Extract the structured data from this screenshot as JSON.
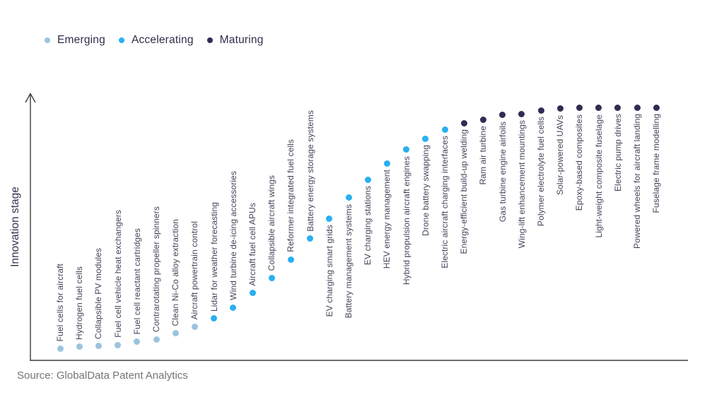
{
  "legend": {
    "items": [
      {
        "label": "Emerging",
        "color": "#9cc3de"
      },
      {
        "label": "Accelerating",
        "color": "#29b0f0"
      },
      {
        "label": "Maturing",
        "color": "#332a54"
      }
    ]
  },
  "y_axis_label": "Innovation stage",
  "source": "Source: GlobalData Patent Analytics",
  "chart_data": {
    "type": "scatter",
    "title": "",
    "xlabel": "",
    "ylabel": "Innovation stage",
    "y_axis_scale": "qualitative innovation stage, 0-1 estimated from dot height",
    "legend_position": "top-left",
    "grid": false,
    "series": [
      {
        "name": "Emerging",
        "color": "#9cc3de",
        "points": [
          {
            "label": "Fuel cells for aircraft",
            "stage_score": 0.047,
            "label_position": "above"
          },
          {
            "label": "Hydrogen fuel cells",
            "stage_score": 0.053,
            "label_position": "above"
          },
          {
            "label": "Collapsible PV modules",
            "stage_score": 0.056,
            "label_position": "above"
          },
          {
            "label": "Fuel cell vehicle heat exchangers",
            "stage_score": 0.061,
            "label_position": "above"
          },
          {
            "label": "Fuel cell reactant cartridges",
            "stage_score": 0.075,
            "label_position": "above"
          },
          {
            "label": "Contrarotating propeller spinners",
            "stage_score": 0.083,
            "label_position": "above"
          },
          {
            "label": "Clean Ni-Co alloy extraction",
            "stage_score": 0.106,
            "label_position": "above"
          },
          {
            "label": "Aircraft powertrain control",
            "stage_score": 0.133,
            "label_position": "above"
          }
        ]
      },
      {
        "name": "Accelerating",
        "color": "#29b0f0",
        "points": [
          {
            "label": "Lidar for weather forecasting",
            "stage_score": 0.164,
            "label_position": "above"
          },
          {
            "label": "Wind turbine de-icing accessories",
            "stage_score": 0.208,
            "label_position": "above"
          },
          {
            "label": "Aircraft fuel cell APUs",
            "stage_score": 0.264,
            "label_position": "above"
          },
          {
            "label": "Collapsible aircraft wings",
            "stage_score": 0.325,
            "label_position": "above"
          },
          {
            "label": "Reformer integrated fuel cells",
            "stage_score": 0.397,
            "label_position": "above"
          },
          {
            "label": "Battery energy storage systems",
            "stage_score": 0.478,
            "label_position": "above"
          },
          {
            "label": "EV charging smart grids",
            "stage_score": 0.558,
            "label_position": "below"
          },
          {
            "label": "Battery management systems",
            "stage_score": 0.639,
            "label_position": "below"
          },
          {
            "label": "EV charging stations",
            "stage_score": 0.711,
            "label_position": "below"
          },
          {
            "label": "HEV energy management",
            "stage_score": 0.775,
            "label_position": "below"
          },
          {
            "label": "Hybrid propulsion aircraft engines",
            "stage_score": 0.828,
            "label_position": "below"
          },
          {
            "label": "Drone battery swapping",
            "stage_score": 0.872,
            "label_position": "below"
          },
          {
            "label": "Electric aircraft charging interfaces",
            "stage_score": 0.908,
            "label_position": "below"
          }
        ]
      },
      {
        "name": "Maturing",
        "color": "#332a54",
        "points": [
          {
            "label": "Energy-efficient build-up welding",
            "stage_score": 0.933,
            "label_position": "below"
          },
          {
            "label": "Ram air turbine",
            "stage_score": 0.947,
            "label_position": "below"
          },
          {
            "label": "Gas turbine engine airfoils",
            "stage_score": 0.964,
            "label_position": "below"
          },
          {
            "label": "Wing-lift enhancement mountings",
            "stage_score": 0.969,
            "label_position": "below"
          },
          {
            "label": "Polymer electrolyte fuel cells",
            "stage_score": 0.983,
            "label_position": "below"
          },
          {
            "label": "Solar-powered UAVs",
            "stage_score": 0.989,
            "label_position": "below"
          },
          {
            "label": "Epoxy-based composites",
            "stage_score": 0.992,
            "label_position": "below"
          },
          {
            "label": "Light-weight composite fuselage",
            "stage_score": 0.992,
            "label_position": "below"
          },
          {
            "label": "Electric pump drives",
            "stage_score": 0.994,
            "label_position": "below"
          },
          {
            "label": "Powered wheels for aircraft landing",
            "stage_score": 0.994,
            "label_position": "below"
          },
          {
            "label": "Fuselage frame modelling",
            "stage_score": 0.994,
            "label_position": "below"
          }
        ]
      }
    ]
  }
}
